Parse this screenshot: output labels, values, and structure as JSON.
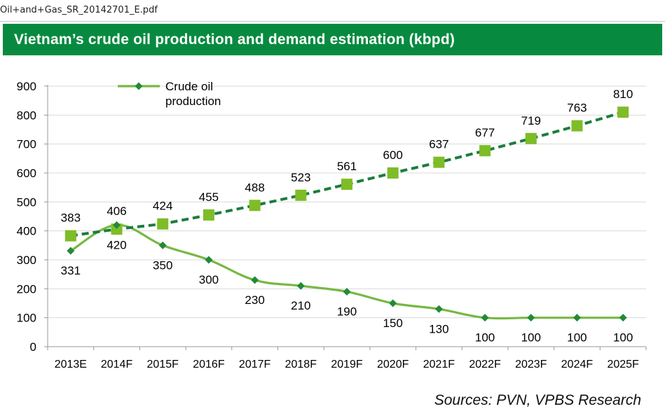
{
  "tab": {
    "filename": "Oil+and+Gas_SR_20142701_E.pdf"
  },
  "title": "Vietnam’s crude oil production and demand estimation (kbpd)",
  "source": "Sources: PVN, VPBS Research",
  "colors": {
    "banner": "#078a40",
    "production": "#77b843",
    "production_marker": "#238a37",
    "demand_line": "#1b7d3d",
    "demand_marker": "#7ebd27"
  },
  "chart_data": {
    "type": "line",
    "title": "Vietnam’s crude oil production and demand estimation (kbpd)",
    "categories": [
      "2013E",
      "2014F",
      "2015F",
      "2016F",
      "2017F",
      "2018F",
      "2019F",
      "2020F",
      "2021F",
      "2022F",
      "2023F",
      "2024F",
      "2025F"
    ],
    "ylim": [
      0,
      900
    ],
    "yticks": [
      0,
      100,
      200,
      300,
      400,
      500,
      600,
      700,
      800,
      900
    ],
    "grid": true,
    "legend_position": "top-left",
    "series": [
      {
        "name": "Crude oil production",
        "legend_lines": [
          "Crude oil",
          "production"
        ],
        "style": "solid",
        "marker": "diamond",
        "values": [
          331,
          420,
          350,
          300,
          230,
          210,
          190,
          150,
          130,
          100,
          100,
          100,
          100
        ]
      },
      {
        "style": "dashed",
        "marker": "square",
        "values": [
          383,
          406,
          424,
          455,
          488,
          523,
          561,
          600,
          637,
          677,
          719,
          763,
          810
        ]
      }
    ]
  }
}
